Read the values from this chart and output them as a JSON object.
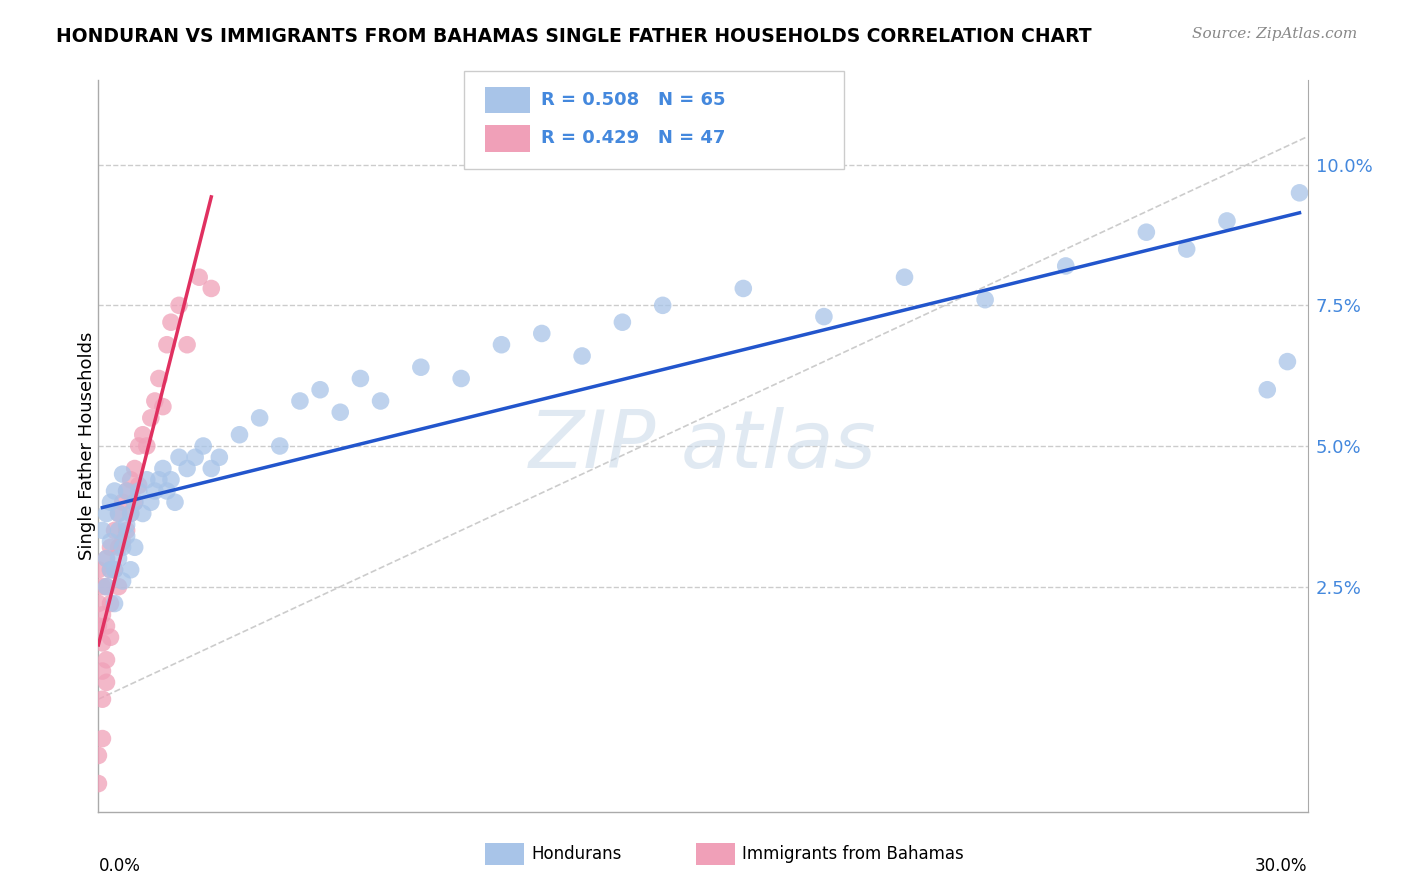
{
  "title": "HONDURAN VS IMMIGRANTS FROM BAHAMAS SINGLE FATHER HOUSEHOLDS CORRELATION CHART",
  "source_text": "Source: ZipAtlas.com",
  "blue_color": "#a8c4e8",
  "pink_color": "#f0a0b8",
  "blue_line_color": "#2255cc",
  "pink_line_color": "#e03060",
  "diag_line_color": "#cccccc",
  "legend_border_color": "#cccccc",
  "grid_color": "#cccccc",
  "right_axis_color": "#4488dd",
  "xlim": [
    0.0,
    0.3
  ],
  "ylim": [
    -0.015,
    0.115
  ],
  "yticks": [
    0.025,
    0.05,
    0.075,
    0.1
  ],
  "ytick_labels": [
    "2.5%",
    "5.0%",
    "7.5%",
    "10.0%"
  ],
  "blue_x": [
    0.001,
    0.002,
    0.002,
    0.003,
    0.003,
    0.004,
    0.004,
    0.005,
    0.005,
    0.006,
    0.006,
    0.007,
    0.007,
    0.008,
    0.009,
    0.01,
    0.011,
    0.012,
    0.013,
    0.014,
    0.015,
    0.016,
    0.017,
    0.018,
    0.019,
    0.02,
    0.022,
    0.024,
    0.026,
    0.028,
    0.03,
    0.035,
    0.04,
    0.045,
    0.05,
    0.055,
    0.06,
    0.065,
    0.07,
    0.08,
    0.09,
    0.1,
    0.11,
    0.12,
    0.13,
    0.14,
    0.16,
    0.18,
    0.2,
    0.22,
    0.24,
    0.26,
    0.27,
    0.28,
    0.29,
    0.295,
    0.298,
    0.002,
    0.003,
    0.004,
    0.005,
    0.006,
    0.007,
    0.008,
    0.009
  ],
  "blue_y": [
    0.035,
    0.03,
    0.038,
    0.033,
    0.04,
    0.028,
    0.042,
    0.035,
    0.038,
    0.032,
    0.045,
    0.036,
    0.042,
    0.038,
    0.04,
    0.042,
    0.038,
    0.044,
    0.04,
    0.042,
    0.044,
    0.046,
    0.042,
    0.044,
    0.04,
    0.048,
    0.046,
    0.048,
    0.05,
    0.046,
    0.048,
    0.052,
    0.055,
    0.05,
    0.058,
    0.06,
    0.056,
    0.062,
    0.058,
    0.064,
    0.062,
    0.068,
    0.07,
    0.066,
    0.072,
    0.075,
    0.078,
    0.073,
    0.08,
    0.076,
    0.082,
    0.088,
    0.085,
    0.09,
    0.06,
    0.065,
    0.095,
    0.025,
    0.028,
    0.022,
    0.03,
    0.026,
    0.034,
    0.028,
    0.032
  ],
  "pink_x": [
    0.0,
    0.0,
    0.0,
    0.001,
    0.001,
    0.001,
    0.001,
    0.001,
    0.002,
    0.002,
    0.002,
    0.002,
    0.003,
    0.003,
    0.003,
    0.003,
    0.004,
    0.004,
    0.005,
    0.005,
    0.005,
    0.006,
    0.006,
    0.007,
    0.007,
    0.008,
    0.008,
    0.009,
    0.009,
    0.01,
    0.01,
    0.011,
    0.012,
    0.013,
    0.014,
    0.015,
    0.016,
    0.017,
    0.018,
    0.02,
    0.022,
    0.025,
    0.028,
    0.0,
    0.0,
    0.001,
    0.002
  ],
  "pink_y": [
    0.028,
    0.022,
    0.018,
    0.025,
    0.02,
    0.015,
    0.01,
    0.005,
    0.03,
    0.025,
    0.018,
    0.012,
    0.032,
    0.028,
    0.022,
    0.016,
    0.035,
    0.028,
    0.038,
    0.032,
    0.025,
    0.04,
    0.033,
    0.042,
    0.035,
    0.044,
    0.038,
    0.046,
    0.04,
    0.05,
    0.043,
    0.052,
    0.05,
    0.055,
    0.058,
    0.062,
    0.057,
    0.068,
    0.072,
    0.075,
    0.068,
    0.08,
    0.078,
    -0.005,
    -0.01,
    -0.002,
    0.008
  ]
}
